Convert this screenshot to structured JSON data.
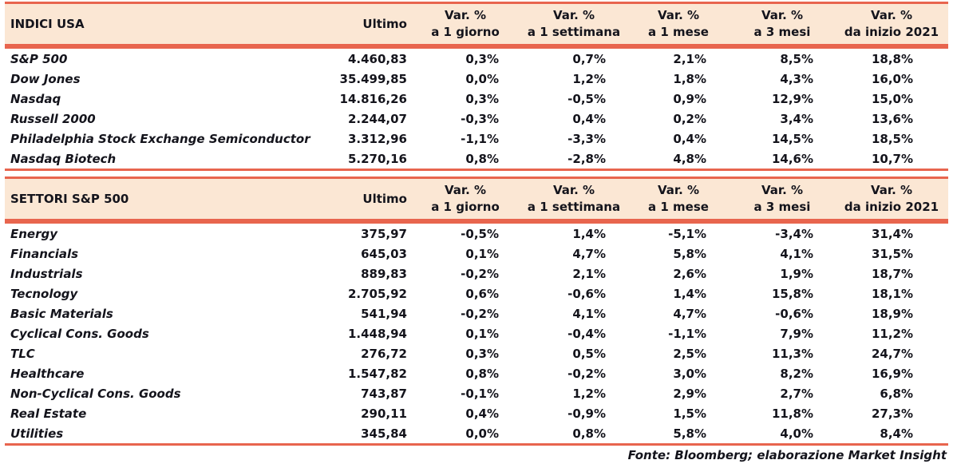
{
  "colors": {
    "accent": "#E8654E",
    "header_bg": "#FBE7D4",
    "text": "#14141C"
  },
  "shared": {
    "ultimo_label": "Ultimo",
    "var_columns": [
      {
        "line1": "Var. %",
        "line2": "a 1 giorno"
      },
      {
        "line1": "Var. %",
        "line2": "a 1 settimana"
      },
      {
        "line1": "Var. %",
        "line2": "a 1 mese"
      },
      {
        "line1": "Var. %",
        "line2": "a 3 mesi"
      },
      {
        "line1": "Var. %",
        "line2": "da inizio 2021"
      }
    ]
  },
  "tables": [
    {
      "title": "INDICI USA",
      "rows": [
        {
          "name": "S&P 500",
          "ultimo": "4.460,83",
          "vars": [
            "0,3%",
            "0,7%",
            "2,1%",
            "8,5%",
            "18,8%"
          ]
        },
        {
          "name": "Dow Jones",
          "ultimo": "35.499,85",
          "vars": [
            "0,0%",
            "1,2%",
            "1,8%",
            "4,3%",
            "16,0%"
          ]
        },
        {
          "name": "Nasdaq",
          "ultimo": "14.816,26",
          "vars": [
            "0,3%",
            "-0,5%",
            "0,9%",
            "12,9%",
            "15,0%"
          ]
        },
        {
          "name": "Russell 2000",
          "ultimo": "2.244,07",
          "vars": [
            "-0,3%",
            "0,4%",
            "0,2%",
            "3,4%",
            "13,6%"
          ]
        },
        {
          "name": "Philadelphia Stock Exchange Semiconductor",
          "ultimo": "3.312,96",
          "vars": [
            "-1,1%",
            "-3,3%",
            "0,4%",
            "14,5%",
            "18,5%"
          ]
        },
        {
          "name": "Nasdaq Biotech",
          "ultimo": "5.270,16",
          "vars": [
            "0,8%",
            "-2,8%",
            "4,8%",
            "14,6%",
            "10,7%"
          ]
        }
      ]
    },
    {
      "title": "SETTORI S&P 500",
      "rows": [
        {
          "name": "Energy",
          "ultimo": "375,97",
          "vars": [
            "-0,5%",
            "1,4%",
            "-5,1%",
            "-3,4%",
            "31,4%"
          ]
        },
        {
          "name": "Financials",
          "ultimo": "645,03",
          "vars": [
            "0,1%",
            "4,7%",
            "5,8%",
            "4,1%",
            "31,5%"
          ]
        },
        {
          "name": "Industrials",
          "ultimo": "889,83",
          "vars": [
            "-0,2%",
            "2,1%",
            "2,6%",
            "1,9%",
            "18,7%"
          ]
        },
        {
          "name": "Tecnology",
          "ultimo": "2.705,92",
          "vars": [
            "0,6%",
            "-0,6%",
            "1,4%",
            "15,8%",
            "18,1%"
          ]
        },
        {
          "name": "Basic Materials",
          "ultimo": "541,94",
          "vars": [
            "-0,2%",
            "4,1%",
            "4,7%",
            "-0,6%",
            "18,9%"
          ]
        },
        {
          "name": "Cyclical Cons. Goods",
          "ultimo": "1.448,94",
          "vars": [
            "0,1%",
            "-0,4%",
            "-1,1%",
            "7,9%",
            "11,2%"
          ]
        },
        {
          "name": "TLC",
          "ultimo": "276,72",
          "vars": [
            "0,3%",
            "0,5%",
            "2,5%",
            "11,3%",
            "24,7%"
          ]
        },
        {
          "name": "Healthcare",
          "ultimo": "1.547,82",
          "vars": [
            "0,8%",
            "-0,2%",
            "3,0%",
            "8,2%",
            "16,9%"
          ]
        },
        {
          "name": "Non-Cyclical Cons. Goods",
          "ultimo": "743,87",
          "vars": [
            "-0,1%",
            "1,2%",
            "2,9%",
            "2,7%",
            "6,8%"
          ]
        },
        {
          "name": "Real Estate",
          "ultimo": "290,11",
          "vars": [
            "0,4%",
            "-0,9%",
            "1,5%",
            "11,8%",
            "27,3%"
          ]
        },
        {
          "name": "Utilities",
          "ultimo": "345,84",
          "vars": [
            "0,0%",
            "0,8%",
            "5,8%",
            "4,0%",
            "8,4%"
          ]
        }
      ]
    }
  ],
  "footer": "Fonte: Bloomberg; elaborazione Market Insight"
}
